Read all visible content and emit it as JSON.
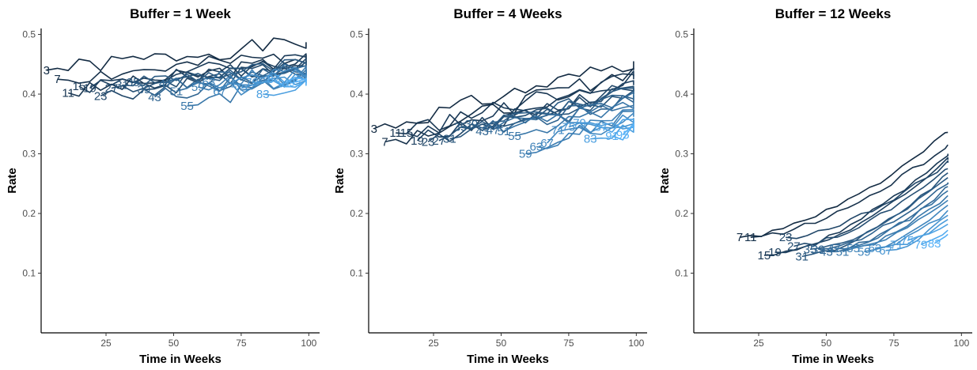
{
  "chart_data": [
    {
      "type": "line",
      "title": "Buffer = 1 Week",
      "xlabel": "Time in Weeks",
      "ylabel": "Rate",
      "xlim": [
        1,
        104
      ],
      "ylim": [
        0,
        0.51
      ],
      "xticks": [
        "25",
        "50",
        "75",
        "100"
      ],
      "yticks": [
        "0.1",
        "0.2",
        "0.3",
        "0.4",
        "0.5"
      ],
      "grid": false,
      "series": [
        {
          "name": "3",
          "x": [
            3,
            99
          ],
          "start": 0.44,
          "end": 0.487,
          "seed": 1
        },
        {
          "name": "7",
          "x": [
            7,
            99
          ],
          "start": 0.425,
          "end": 0.465,
          "seed": 2
        },
        {
          "name": "11",
          "x": [
            11,
            99
          ],
          "start": 0.402,
          "end": 0.458,
          "seed": 3
        },
        {
          "name": "15",
          "x": [
            15,
            99
          ],
          "start": 0.413,
          "end": 0.462,
          "seed": 4
        },
        {
          "name": "19",
          "x": [
            19,
            99
          ],
          "start": 0.41,
          "end": 0.455,
          "seed": 5
        },
        {
          "name": "23",
          "x": [
            23,
            99
          ],
          "start": 0.397,
          "end": 0.448,
          "seed": 6
        },
        {
          "name": "27",
          "x": [
            27,
            99
          ],
          "start": 0.41,
          "end": 0.452,
          "seed": 7
        },
        {
          "name": "31",
          "x": [
            31,
            99
          ],
          "start": 0.415,
          "end": 0.446,
          "seed": 8
        },
        {
          "name": "35",
          "x": [
            35,
            99
          ],
          "start": 0.42,
          "end": 0.45,
          "seed": 9
        },
        {
          "name": "39",
          "x": [
            39,
            99
          ],
          "start": 0.408,
          "end": 0.442,
          "seed": 10
        },
        {
          "name": "43",
          "x": [
            43,
            99
          ],
          "start": 0.395,
          "end": 0.44,
          "seed": 11
        },
        {
          "name": "47",
          "x": [
            47,
            99
          ],
          "start": 0.418,
          "end": 0.444,
          "seed": 12
        },
        {
          "name": "51",
          "x": [
            51,
            99
          ],
          "start": 0.405,
          "end": 0.436,
          "seed": 13
        },
        {
          "name": "55",
          "x": [
            55,
            99
          ],
          "start": 0.38,
          "end": 0.43,
          "seed": 14
        },
        {
          "name": "59",
          "x": [
            59,
            99
          ],
          "start": 0.412,
          "end": 0.433,
          "seed": 15
        },
        {
          "name": "63",
          "x": [
            63,
            99
          ],
          "start": 0.42,
          "end": 0.438,
          "seed": 16
        },
        {
          "name": "67",
          "x": [
            67,
            99
          ],
          "start": 0.405,
          "end": 0.428,
          "seed": 17
        },
        {
          "name": "71",
          "x": [
            71,
            99
          ],
          "start": 0.418,
          "end": 0.432,
          "seed": 18
        },
        {
          "name": "75",
          "x": [
            75,
            99
          ],
          "start": 0.41,
          "end": 0.425,
          "seed": 19
        },
        {
          "name": "79",
          "x": [
            79,
            99
          ],
          "start": 0.42,
          "end": 0.428,
          "seed": 20
        },
        {
          "name": "83",
          "x": [
            83,
            99
          ],
          "start": 0.4,
          "end": 0.418,
          "seed": 21
        },
        {
          "name": "87",
          "x": [
            87,
            99
          ],
          "start": 0.425,
          "end": 0.424,
          "seed": 22
        },
        {
          "name": "91",
          "x": [
            91,
            99
          ],
          "start": 0.418,
          "end": 0.414,
          "seed": 23
        },
        {
          "name": "95",
          "x": [
            95,
            99
          ],
          "start": 0.42,
          "end": 0.418,
          "seed": 24
        }
      ]
    },
    {
      "type": "line",
      "title": "Buffer = 4 Weeks",
      "xlabel": "Time in Weeks",
      "ylabel": "Rate",
      "xlim": [
        1,
        104
      ],
      "ylim": [
        0,
        0.51
      ],
      "xticks": [
        "25",
        "50",
        "75",
        "100"
      ],
      "yticks": [
        "0.1",
        "0.2",
        "0.3",
        "0.4",
        "0.5"
      ],
      "grid": false,
      "series": [
        {
          "name": "3",
          "x": [
            3,
            99
          ],
          "start": 0.342,
          "end": 0.455,
          "seed": 31
        },
        {
          "name": "7",
          "x": [
            7,
            99
          ],
          "start": 0.32,
          "end": 0.44,
          "seed": 32
        },
        {
          "name": "11",
          "x": [
            11,
            99
          ],
          "start": 0.335,
          "end": 0.43,
          "seed": 33
        },
        {
          "name": "15",
          "x": [
            15,
            99
          ],
          "start": 0.335,
          "end": 0.425,
          "seed": 34
        },
        {
          "name": "19",
          "x": [
            19,
            99
          ],
          "start": 0.322,
          "end": 0.415,
          "seed": 35
        },
        {
          "name": "23",
          "x": [
            23,
            99
          ],
          "start": 0.32,
          "end": 0.41,
          "seed": 36
        },
        {
          "name": "27",
          "x": [
            27,
            99
          ],
          "start": 0.322,
          "end": 0.405,
          "seed": 37
        },
        {
          "name": "31",
          "x": [
            31,
            99
          ],
          "start": 0.325,
          "end": 0.4,
          "seed": 38
        },
        {
          "name": "35",
          "x": [
            35,
            99
          ],
          "start": 0.345,
          "end": 0.4,
          "seed": 39
        },
        {
          "name": "39",
          "x": [
            39,
            99
          ],
          "start": 0.35,
          "end": 0.398,
          "seed": 40
        },
        {
          "name": "43",
          "x": [
            43,
            99
          ],
          "start": 0.338,
          "end": 0.392,
          "seed": 41
        },
        {
          "name": "47",
          "x": [
            47,
            99
          ],
          "start": 0.34,
          "end": 0.39,
          "seed": 42
        },
        {
          "name": "51",
          "x": [
            51,
            99
          ],
          "start": 0.338,
          "end": 0.386,
          "seed": 43
        },
        {
          "name": "55",
          "x": [
            55,
            99
          ],
          "start": 0.33,
          "end": 0.38,
          "seed": 44
        },
        {
          "name": "59",
          "x": [
            59,
            99
          ],
          "start": 0.3,
          "end": 0.372,
          "seed": 45
        },
        {
          "name": "63",
          "x": [
            63,
            99
          ],
          "start": 0.312,
          "end": 0.368,
          "seed": 46
        },
        {
          "name": "67",
          "x": [
            67,
            99
          ],
          "start": 0.318,
          "end": 0.362,
          "seed": 47
        },
        {
          "name": "71",
          "x": [
            71,
            99
          ],
          "start": 0.34,
          "end": 0.36,
          "seed": 48
        },
        {
          "name": "75",
          "x": [
            75,
            99
          ],
          "start": 0.345,
          "end": 0.356,
          "seed": 49
        },
        {
          "name": "79",
          "x": [
            79,
            99
          ],
          "start": 0.352,
          "end": 0.352,
          "seed": 50
        },
        {
          "name": "83",
          "x": [
            83,
            99
          ],
          "start": 0.325,
          "end": 0.348,
          "seed": 51
        },
        {
          "name": "87",
          "x": [
            87,
            99
          ],
          "start": 0.345,
          "end": 0.346,
          "seed": 52
        },
        {
          "name": "91",
          "x": [
            91,
            99
          ],
          "start": 0.33,
          "end": 0.344,
          "seed": 53
        },
        {
          "name": "95",
          "x": [
            95,
            99
          ],
          "start": 0.332,
          "end": 0.34,
          "seed": 54
        }
      ]
    },
    {
      "type": "line",
      "title": "Buffer = 12 Weeks",
      "xlabel": "Time in Weeks",
      "ylabel": "Rate",
      "xlim": [
        1,
        104
      ],
      "ylim": [
        0,
        0.51
      ],
      "xticks": [
        "25",
        "50",
        "75",
        "100"
      ],
      "yticks": [
        "0.1",
        "0.2",
        "0.3",
        "0.4",
        "0.5"
      ],
      "grid": false,
      "series": [
        {
          "name": "7",
          "x": [
            18,
            95
          ],
          "start": 0.16,
          "end": 0.336,
          "seed": 61
        },
        {
          "name": "11",
          "x": [
            22,
            95
          ],
          "start": 0.16,
          "end": 0.315,
          "seed": 62
        },
        {
          "name": "15",
          "x": [
            27,
            95
          ],
          "start": 0.13,
          "end": 0.3,
          "seed": 63
        },
        {
          "name": "19",
          "x": [
            31,
            95
          ],
          "start": 0.135,
          "end": 0.29,
          "seed": 64
        },
        {
          "name": "23",
          "x": [
            35,
            95
          ],
          "start": 0.16,
          "end": 0.285,
          "seed": 65
        },
        {
          "name": "27",
          "x": [
            38,
            95
          ],
          "start": 0.145,
          "end": 0.275,
          "seed": 66
        },
        {
          "name": "31",
          "x": [
            41,
            95
          ],
          "start": 0.128,
          "end": 0.268,
          "seed": 67
        },
        {
          "name": "35",
          "x": [
            44,
            95
          ],
          "start": 0.14,
          "end": 0.26,
          "seed": 68
        },
        {
          "name": "39",
          "x": [
            47,
            95
          ],
          "start": 0.14,
          "end": 0.252,
          "seed": 69
        },
        {
          "name": "43",
          "x": [
            50,
            95
          ],
          "start": 0.136,
          "end": 0.245,
          "seed": 70
        },
        {
          "name": "47",
          "x": [
            53,
            95
          ],
          "start": 0.142,
          "end": 0.238,
          "seed": 71
        },
        {
          "name": "51",
          "x": [
            56,
            95
          ],
          "start": 0.136,
          "end": 0.23,
          "seed": 72
        },
        {
          "name": "55",
          "x": [
            60,
            95
          ],
          "start": 0.142,
          "end": 0.222,
          "seed": 73
        },
        {
          "name": "59",
          "x": [
            64,
            95
          ],
          "start": 0.136,
          "end": 0.214,
          "seed": 74
        },
        {
          "name": "63",
          "x": [
            68,
            95
          ],
          "start": 0.142,
          "end": 0.205,
          "seed": 75
        },
        {
          "name": "67",
          "x": [
            72,
            95
          ],
          "start": 0.138,
          "end": 0.197,
          "seed": 76
        },
        {
          "name": "71",
          "x": [
            76,
            95
          ],
          "start": 0.148,
          "end": 0.19,
          "seed": 77
        },
        {
          "name": "75",
          "x": [
            80,
            95
          ],
          "start": 0.155,
          "end": 0.182,
          "seed": 78
        },
        {
          "name": "79",
          "x": [
            85,
            95
          ],
          "start": 0.148,
          "end": 0.172,
          "seed": 79
        },
        {
          "name": "83",
          "x": [
            90,
            95
          ],
          "start": 0.15,
          "end": 0.165,
          "seed": 80
        }
      ]
    }
  ],
  "colors": {
    "darkest": "#132b43",
    "lightest": "#56b1f7",
    "axis": "#000000",
    "tick_text": "#4d4d4d"
  }
}
